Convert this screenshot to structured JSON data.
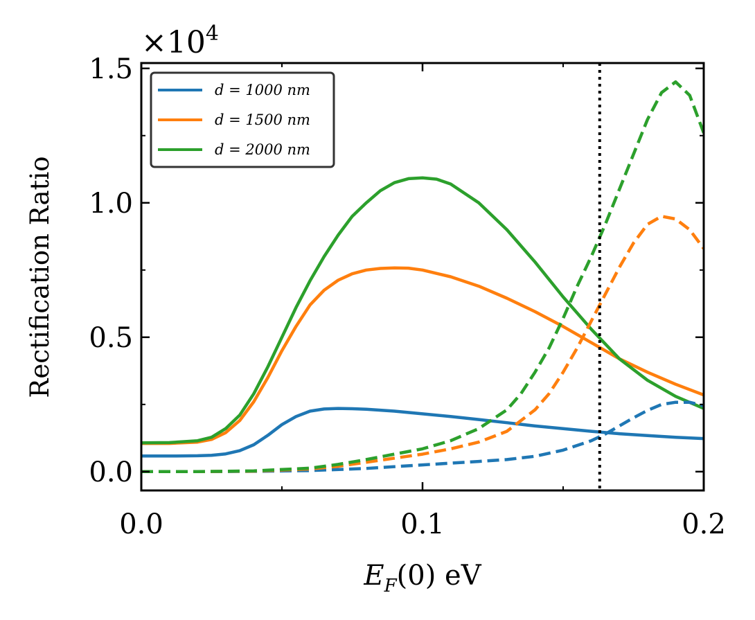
{
  "chart_data": {
    "type": "line",
    "title": "",
    "xlabel": "E_F(0) eV",
    "xlabel_main": "E",
    "xlabel_sub": "F",
    "xlabel_rest": "(0) eV",
    "ylabel": "Rectification Ratio",
    "y_multiplier": "×10",
    "y_multiplier_exp": "4",
    "xlim": [
      0.0,
      0.2
    ],
    "ylim": [
      -0.07,
      1.52
    ],
    "xticks": [
      0.0,
      0.1,
      0.2
    ],
    "xtick_labels": [
      "0.0",
      "0.1",
      "0.2"
    ],
    "xminor": [
      0.05,
      0.15
    ],
    "yticks": [
      0.0,
      0.5,
      1.0,
      1.5
    ],
    "ytick_labels": [
      "0.0",
      "0.5",
      "1.0",
      "1.5"
    ],
    "yminor": [
      0.25,
      0.75,
      1.25
    ],
    "vline": {
      "x": 0.163,
      "style": "dotted",
      "color": "#000000"
    },
    "legend_position": "top-left",
    "series": [
      {
        "name": "d = 1000 nm",
        "legend_label": "d = 1000 nm",
        "color": "#1f77b4",
        "style": "solid",
        "x": [
          0.0,
          0.01,
          0.02,
          0.025,
          0.03,
          0.035,
          0.04,
          0.045,
          0.05,
          0.055,
          0.06,
          0.065,
          0.07,
          0.075,
          0.08,
          0.09,
          0.1,
          0.11,
          0.12,
          0.13,
          0.14,
          0.15,
          0.16,
          0.17,
          0.18,
          0.19,
          0.2
        ],
        "y": [
          0.058,
          0.058,
          0.059,
          0.061,
          0.066,
          0.078,
          0.1,
          0.135,
          0.175,
          0.205,
          0.225,
          0.233,
          0.235,
          0.234,
          0.232,
          0.225,
          0.215,
          0.205,
          0.194,
          0.182,
          0.17,
          0.16,
          0.15,
          0.141,
          0.134,
          0.128,
          0.123
        ]
      },
      {
        "name": "d = 1500 nm",
        "legend_label": "d = 1500 nm",
        "color": "#ff7f0e",
        "style": "solid",
        "x": [
          0.0,
          0.01,
          0.02,
          0.025,
          0.03,
          0.035,
          0.04,
          0.045,
          0.05,
          0.055,
          0.06,
          0.065,
          0.07,
          0.075,
          0.08,
          0.085,
          0.09,
          0.095,
          0.1,
          0.11,
          0.12,
          0.13,
          0.14,
          0.15,
          0.16,
          0.17,
          0.18,
          0.19,
          0.2
        ],
        "y": [
          0.105,
          0.105,
          0.11,
          0.12,
          0.145,
          0.19,
          0.26,
          0.35,
          0.45,
          0.54,
          0.62,
          0.675,
          0.712,
          0.736,
          0.75,
          0.756,
          0.758,
          0.757,
          0.75,
          0.725,
          0.69,
          0.645,
          0.595,
          0.54,
          0.48,
          0.42,
          0.37,
          0.325,
          0.285
        ]
      },
      {
        "name": "d = 2000 nm",
        "legend_label": "d = 2000 nm",
        "color": "#2ca02c",
        "style": "solid",
        "x": [
          0.0,
          0.01,
          0.02,
          0.025,
          0.03,
          0.035,
          0.04,
          0.045,
          0.05,
          0.055,
          0.06,
          0.065,
          0.07,
          0.075,
          0.08,
          0.085,
          0.09,
          0.095,
          0.1,
          0.105,
          0.11,
          0.12,
          0.13,
          0.14,
          0.15,
          0.16,
          0.17,
          0.18,
          0.19,
          0.2
        ],
        "y": [
          0.107,
          0.108,
          0.115,
          0.128,
          0.16,
          0.21,
          0.29,
          0.39,
          0.5,
          0.61,
          0.71,
          0.8,
          0.88,
          0.95,
          1.0,
          1.045,
          1.075,
          1.09,
          1.093,
          1.088,
          1.07,
          1.0,
          0.9,
          0.78,
          0.65,
          0.53,
          0.42,
          0.34,
          0.28,
          0.235
        ]
      },
      {
        "name": "d = 1000 nm (dashed)",
        "color": "#1f77b4",
        "style": "dashed",
        "x": [
          0.0,
          0.02,
          0.04,
          0.06,
          0.08,
          0.1,
          0.12,
          0.13,
          0.14,
          0.15,
          0.16,
          0.165,
          0.17,
          0.175,
          0.18,
          0.185,
          0.19,
          0.195,
          0.2
        ],
        "y": [
          0.0,
          0.0,
          0.001,
          0.004,
          0.012,
          0.025,
          0.038,
          0.045,
          0.057,
          0.08,
          0.115,
          0.14,
          0.17,
          0.2,
          0.228,
          0.25,
          0.258,
          0.258,
          0.245
        ]
      },
      {
        "name": "d = 1500 nm (dashed)",
        "color": "#ff7f0e",
        "style": "dashed",
        "x": [
          0.0,
          0.02,
          0.04,
          0.06,
          0.07,
          0.08,
          0.09,
          0.1,
          0.11,
          0.12,
          0.13,
          0.14,
          0.145,
          0.15,
          0.155,
          0.16,
          0.165,
          0.17,
          0.175,
          0.18,
          0.185,
          0.19,
          0.195,
          0.2
        ],
        "y": [
          0.0,
          0.0,
          0.002,
          0.01,
          0.02,
          0.035,
          0.05,
          0.065,
          0.085,
          0.11,
          0.15,
          0.23,
          0.29,
          0.37,
          0.46,
          0.56,
          0.66,
          0.76,
          0.85,
          0.92,
          0.95,
          0.94,
          0.9,
          0.83
        ]
      },
      {
        "name": "d = 2000 nm (dashed)",
        "color": "#2ca02c",
        "style": "dashed",
        "x": [
          0.0,
          0.02,
          0.04,
          0.06,
          0.07,
          0.08,
          0.09,
          0.1,
          0.11,
          0.12,
          0.13,
          0.135,
          0.14,
          0.145,
          0.15,
          0.155,
          0.16,
          0.165,
          0.17,
          0.175,
          0.18,
          0.185,
          0.19,
          0.195,
          0.2
        ],
        "y": [
          0.0,
          0.0,
          0.003,
          0.013,
          0.027,
          0.045,
          0.065,
          0.085,
          0.115,
          0.16,
          0.23,
          0.29,
          0.37,
          0.46,
          0.57,
          0.69,
          0.8,
          0.92,
          1.05,
          1.18,
          1.31,
          1.41,
          1.45,
          1.4,
          1.26
        ]
      }
    ]
  }
}
